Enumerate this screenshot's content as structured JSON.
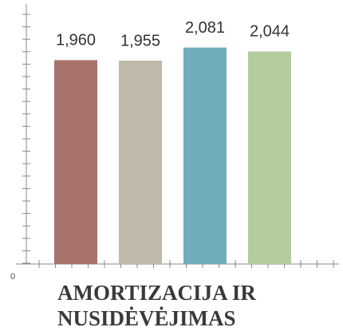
{
  "chart_data": {
    "type": "bar",
    "title": [
      "AMORTIZACIJA IR",
      "NUSIDĖVĖJIMAS"
    ],
    "categories": [
      null,
      null,
      null,
      null
    ],
    "values": [
      1960,
      1955,
      2081,
      2044
    ],
    "value_labels": [
      "1,960",
      "1,955",
      "2,081",
      "2,044"
    ],
    "colors": [
      "#a8736b",
      "#c1b8ac",
      "#70acbc",
      "#b4cb9e"
    ],
    "ylim": [
      0,
      2500
    ],
    "yticks": [
      0
    ],
    "grid": false
  }
}
